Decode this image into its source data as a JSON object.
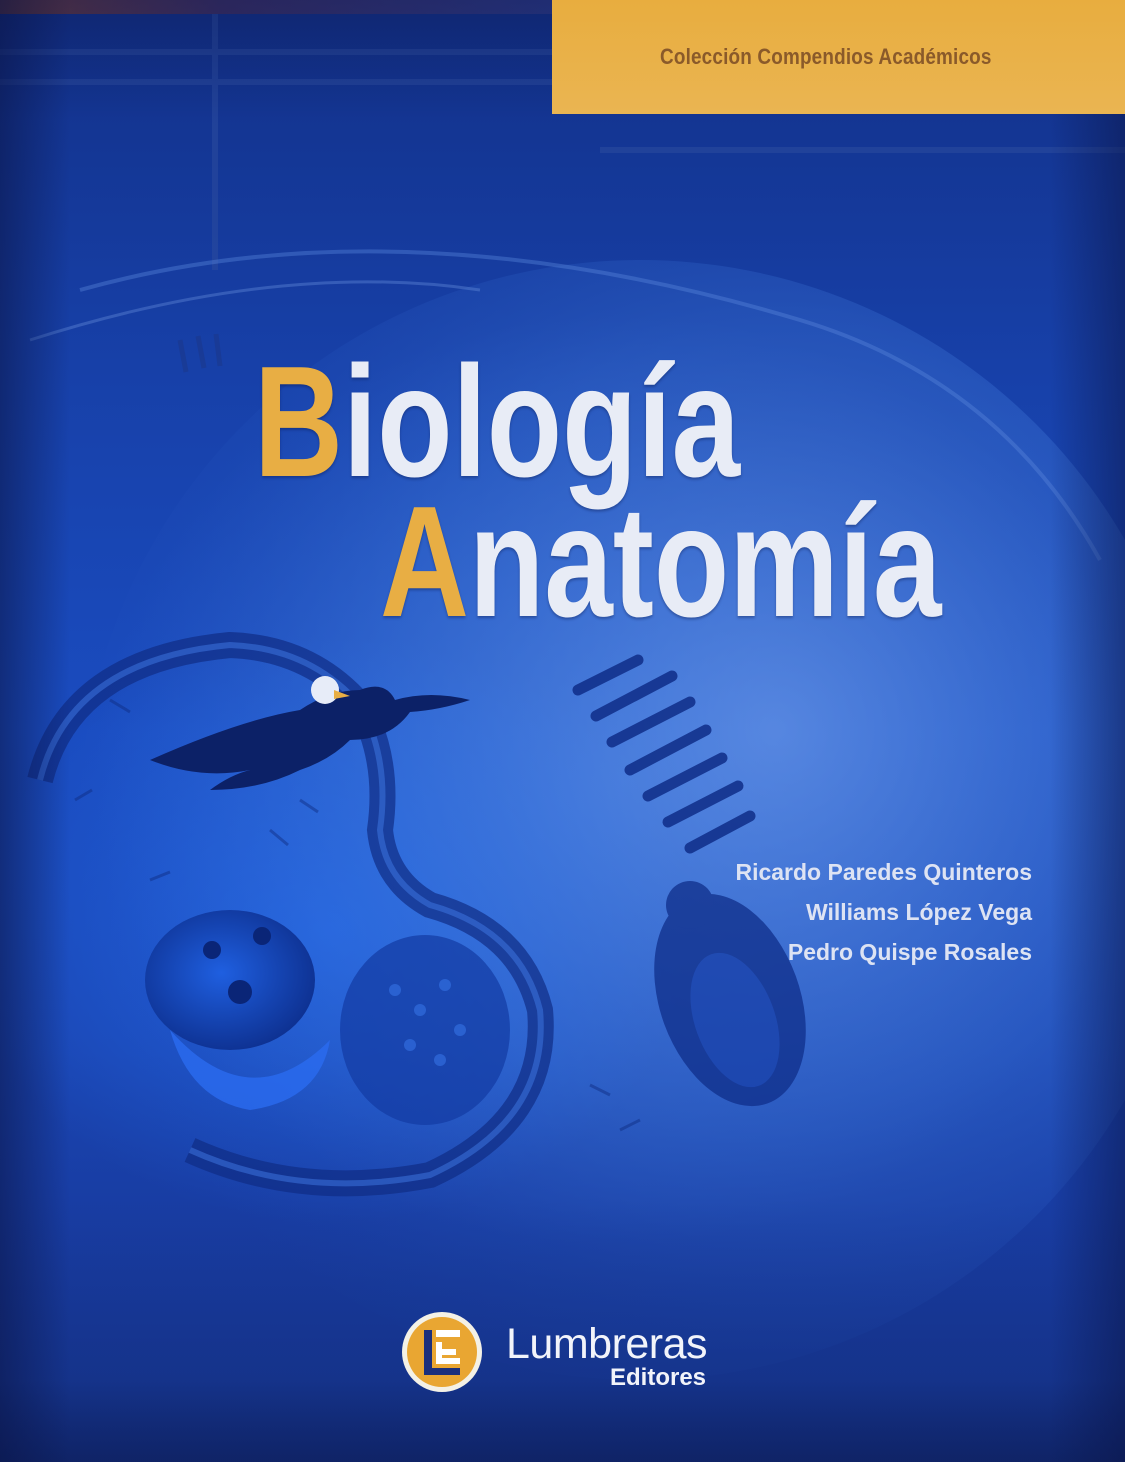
{
  "collection": {
    "label": "Colección Compendios Académicos",
    "band_color": "#e8ad3f"
  },
  "title": {
    "line1": {
      "initial": "B",
      "rest": "iología"
    },
    "line2": {
      "initial": "A",
      "rest": "natomía"
    },
    "initial_color": "#e8ae44",
    "text_color": "#e8ecf6"
  },
  "authors": [
    "Ricardo Paredes Quinteros",
    "Williams López Vega",
    "Pedro Quispe Rosales"
  ],
  "publisher": {
    "name": "Lumbreras",
    "subtitle": "Editores",
    "logo_icon": "lumbreras-logo-icon"
  },
  "artwork": {
    "elements": [
      "globe-illustration",
      "eagle-icon",
      "cell-illustration",
      "dna-strand-illustration",
      "insect-illustration"
    ],
    "background_color": "#1a4cc0"
  }
}
